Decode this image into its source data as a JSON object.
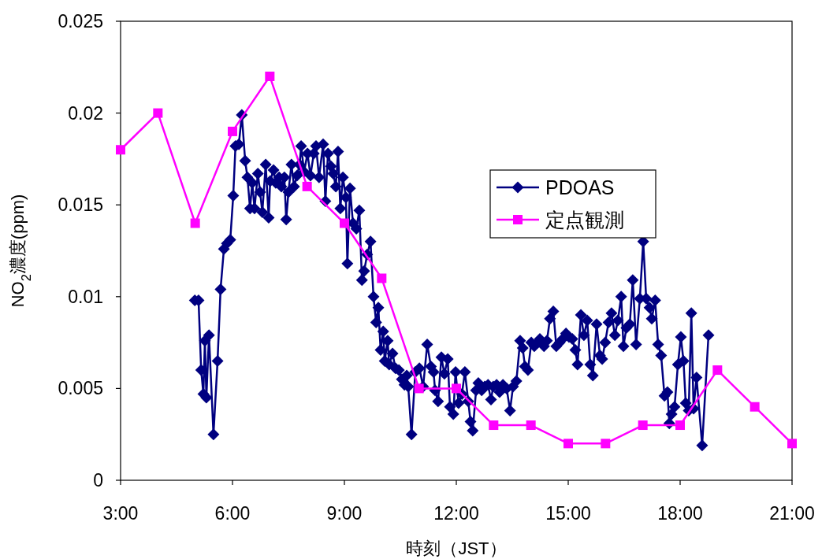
{
  "chart_data": {
    "type": "line",
    "xlabel": "時刻（JST）",
    "ylabel": "NO$_{2}$濃度(ppm)",
    "xlim": [
      3,
      21
    ],
    "xticks": [
      {
        "value": 3,
        "label": "3:00"
      },
      {
        "value": 6,
        "label": "6:00"
      },
      {
        "value": 9,
        "label": "9:00"
      },
      {
        "value": 12,
        "label": "12:00"
      },
      {
        "value": 15,
        "label": "15:00"
      },
      {
        "value": 18,
        "label": "18:00"
      },
      {
        "value": 21,
        "label": "21:00"
      }
    ],
    "ylim": [
      0,
      0.025
    ],
    "yticks": [
      0,
      0.005,
      0.01,
      0.015,
      0.02,
      0.025
    ],
    "legend": "right",
    "series": [
      {
        "name": "PDOAS",
        "color": "#000080",
        "marker": "diamond",
        "x": [
          4.99,
          5.09,
          5.16,
          5.22,
          5.26,
          5.3,
          5.37,
          5.49,
          5.6,
          5.68,
          5.77,
          5.85,
          5.94,
          6.02,
          6.08,
          6.17,
          6.25,
          6.34,
          6.4,
          6.47,
          6.53,
          6.59,
          6.68,
          6.74,
          6.8,
          6.89,
          6.97,
          7.01,
          7.1,
          7.16,
          7.25,
          7.31,
          7.39,
          7.44,
          7.5,
          7.58,
          7.65,
          7.73,
          7.8,
          7.84,
          7.92,
          8.01,
          8.09,
          8.18,
          8.24,
          8.32,
          8.43,
          8.49,
          8.56,
          8.64,
          8.7,
          8.77,
          8.83,
          8.89,
          8.96,
          9.04,
          9.08,
          9.15,
          9.23,
          9.32,
          9.4,
          9.47,
          9.53,
          9.61,
          9.7,
          9.78,
          9.85,
          9.91,
          9.97,
          10.04,
          10.08,
          10.16,
          10.2,
          10.29,
          10.37,
          10.46,
          10.54,
          10.61,
          10.67,
          10.71,
          10.8,
          10.9,
          11.01,
          11.11,
          11.22,
          11.32,
          11.39,
          11.43,
          11.51,
          11.6,
          11.68,
          11.77,
          11.83,
          11.92,
          11.98,
          12.06,
          12.15,
          12.23,
          12.32,
          12.38,
          12.44,
          12.53,
          12.59,
          12.68,
          12.76,
          12.85,
          12.93,
          12.99,
          13.08,
          13.16,
          13.25,
          13.35,
          13.44,
          13.52,
          13.61,
          13.71,
          13.78,
          13.84,
          13.92,
          14.01,
          14.09,
          14.18,
          14.24,
          14.35,
          14.43,
          14.51,
          14.6,
          14.68,
          14.77,
          14.85,
          14.94,
          15.02,
          15.11,
          15.19,
          15.25,
          15.34,
          15.42,
          15.51,
          15.59,
          15.66,
          15.76,
          15.85,
          15.91,
          15.99,
          16.08,
          16.16,
          16.25,
          16.33,
          16.42,
          16.48,
          16.56,
          16.65,
          16.73,
          16.82,
          16.92,
          17.01,
          17.09,
          17.18,
          17.24,
          17.33,
          17.41,
          17.49,
          17.58,
          17.66,
          17.71,
          17.77,
          17.85,
          17.94,
          18.02,
          18.09,
          18.15,
          18.23,
          18.3,
          18.36,
          18.44,
          18.59,
          18.76
        ],
        "values": [
          0.0098,
          0.0098,
          0.006,
          0.0047,
          0.0076,
          0.0045,
          0.0079,
          0.0025,
          0.0065,
          0.0104,
          0.0126,
          0.0129,
          0.0131,
          0.0155,
          0.0182,
          0.0183,
          0.0199,
          0.0174,
          0.0165,
          0.0148,
          0.0162,
          0.0148,
          0.0167,
          0.0157,
          0.0146,
          0.0172,
          0.0143,
          0.0163,
          0.0169,
          0.0162,
          0.0165,
          0.016,
          0.0165,
          0.0142,
          0.0157,
          0.0172,
          0.016,
          0.0166,
          0.0172,
          0.0182,
          0.0168,
          0.0178,
          0.0166,
          0.0178,
          0.0182,
          0.0165,
          0.0183,
          0.0152,
          0.0178,
          0.0171,
          0.0167,
          0.016,
          0.0179,
          0.0148,
          0.0165,
          0.0154,
          0.0118,
          0.0159,
          0.014,
          0.0137,
          0.0147,
          0.0109,
          0.0114,
          0.0123,
          0.013,
          0.01,
          0.0086,
          0.0094,
          0.0071,
          0.0081,
          0.0065,
          0.0076,
          0.0063,
          0.0069,
          0.0061,
          0.006,
          0.0055,
          0.0052,
          0.0057,
          0.0051,
          0.0025,
          0.0059,
          0.0061,
          0.0051,
          0.0074,
          0.0062,
          0.0059,
          0.0049,
          0.0043,
          0.0067,
          0.0058,
          0.0066,
          0.004,
          0.0036,
          0.0059,
          0.0042,
          0.0047,
          0.0059,
          0.0043,
          0.0032,
          0.0027,
          0.0049,
          0.0053,
          0.0049,
          0.0051,
          0.0052,
          0.0044,
          0.0051,
          0.0052,
          0.0048,
          0.0052,
          0.005,
          0.0038,
          0.0051,
          0.0054,
          0.0076,
          0.0072,
          0.0062,
          0.006,
          0.0075,
          0.0073,
          0.0075,
          0.0077,
          0.0073,
          0.0076,
          0.0088,
          0.0092,
          0.0073,
          0.0075,
          0.0077,
          0.008,
          0.0078,
          0.0077,
          0.0071,
          0.0063,
          0.009,
          0.0079,
          0.0087,
          0.0063,
          0.0057,
          0.0085,
          0.0068,
          0.0066,
          0.0075,
          0.0086,
          0.0091,
          0.0079,
          0.0087,
          0.01,
          0.0073,
          0.0083,
          0.0085,
          0.0109,
          0.0074,
          0.0099,
          0.013,
          0.0099,
          0.0094,
          0.0088,
          0.0098,
          0.0074,
          0.0068,
          0.0046,
          0.0048,
          0.0031,
          0.0036,
          0.004,
          0.0063,
          0.0078,
          0.0065,
          0.0042,
          0.0038,
          0.0091,
          0.0039,
          0.0056,
          0.0019,
          0.0079
        ]
      },
      {
        "name": "定点観測",
        "color": "#ff00ff",
        "marker": "square",
        "x": [
          3,
          4,
          5,
          6,
          7,
          8,
          9,
          10,
          11,
          12,
          13,
          14,
          15,
          16,
          17,
          18,
          19,
          20,
          21
        ],
        "values": [
          0.018,
          0.02,
          0.014,
          0.019,
          0.022,
          0.016,
          0.014,
          0.011,
          0.005,
          0.005,
          0.003,
          0.003,
          0.002,
          0.002,
          0.003,
          0.003,
          0.006,
          0.004,
          0.002
        ]
      }
    ]
  }
}
